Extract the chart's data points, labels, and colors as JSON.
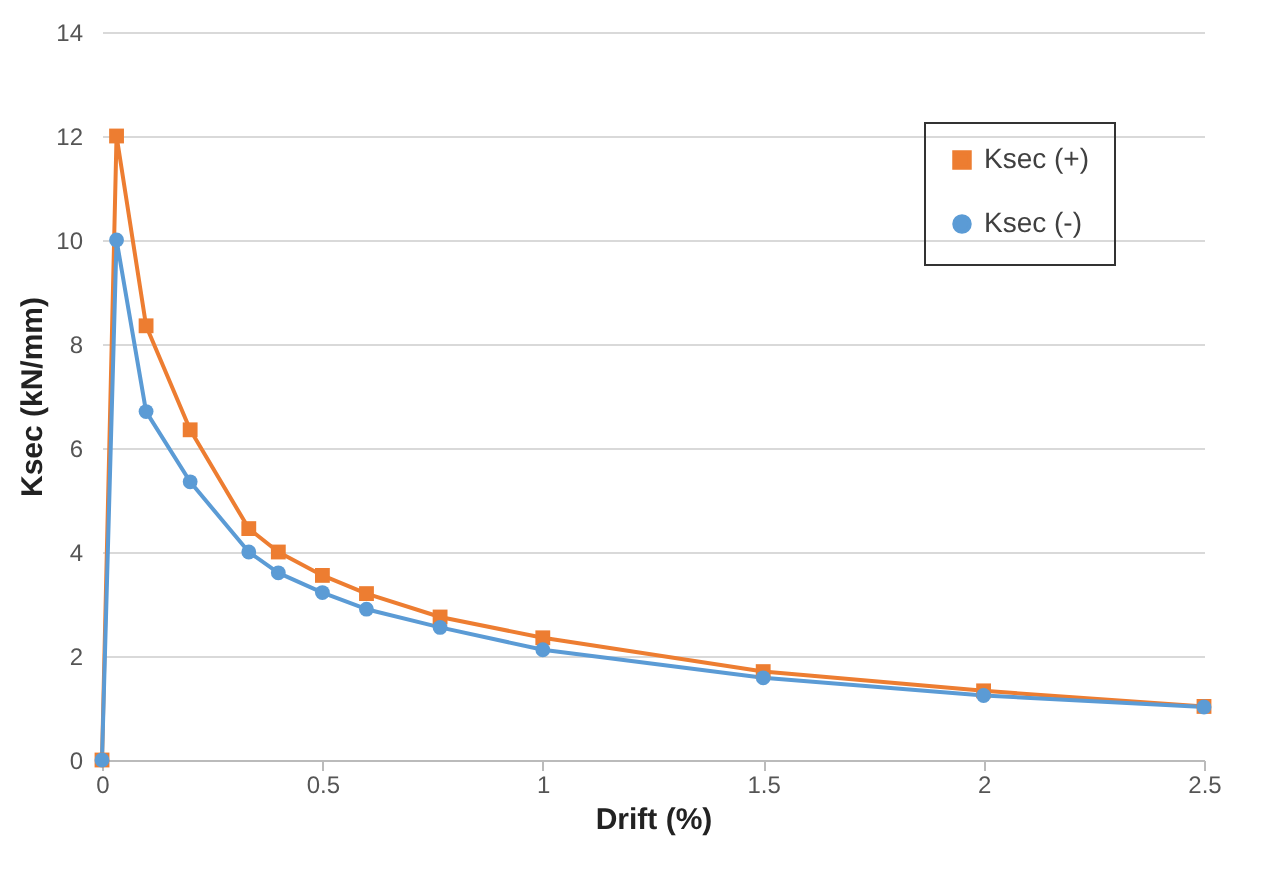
{
  "chart_data": {
    "type": "line",
    "xlabel": "Drift (%)",
    "ylabel": "Ksec (kN/mm)",
    "xlim": [
      0,
      2.5
    ],
    "xticks": [
      0,
      0.5,
      1,
      1.5,
      2,
      2.5
    ],
    "ylim": [
      0,
      14
    ],
    "yticks": [
      0,
      2,
      4,
      6,
      8,
      10,
      12,
      14
    ],
    "grid": "y",
    "legend": "top right",
    "x": [
      0,
      0.033,
      0.1,
      0.2,
      0.333,
      0.4,
      0.5,
      0.6,
      0.767,
      1,
      1.5,
      2,
      2.5
    ],
    "series": [
      {
        "name": "Ksec (+)",
        "color": "#ed7d31",
        "marker": "square",
        "values": [
          0,
          12,
          8.35,
          6.35,
          4.45,
          4.0,
          3.55,
          3.2,
          2.75,
          2.35,
          1.7,
          1.33,
          1.03
        ]
      },
      {
        "name": "Ksec (-)",
        "color": "#5b9bd5",
        "marker": "circle",
        "values": [
          0,
          10,
          6.7,
          5.35,
          4.0,
          3.6,
          3.22,
          2.9,
          2.55,
          2.12,
          1.58,
          1.24,
          1.02
        ]
      }
    ]
  }
}
